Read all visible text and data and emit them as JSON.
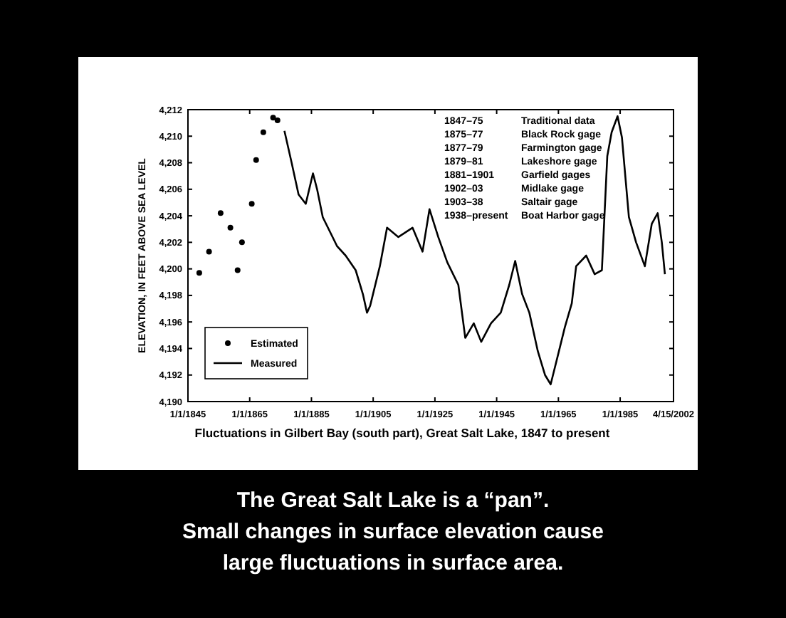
{
  "chart_data": {
    "type": "line",
    "title": "The Great Salt Lake is a “pan”.\nSmall changes in surface elevation cause\nlarge fluctuations in surface area.",
    "xlabel": "Fluctuations in Gilbert Bay (south part), Great Salt Lake, 1847 to present",
    "ylabel": "ELEVATION, IN FEET ABOVE SEA LEVEL",
    "annotations": [
      "1847–75\tTraditional data",
      "1875–77\tBlack Rock gage",
      "1877–79\tFarmington gage",
      "1879–81\tLakeshore gage",
      "1881–1901\tGarfield gages",
      "1902–03\tMidlake gage",
      "1903–38\tSaltair gage",
      "1938–present\tBoat Harbor gage"
    ],
    "xlim": [
      "1845-01-01",
      "2002-04-15"
    ],
    "xticks": [
      {
        "value": "1845-01-01",
        "label": "1/1/1845"
      },
      {
        "value": "1865-01-01",
        "label": "1/1/1865"
      },
      {
        "value": "1885-01-01",
        "label": "1/1/1885"
      },
      {
        "value": "1905-01-01",
        "label": "1/1/1905"
      },
      {
        "value": "1925-01-01",
        "label": "1/1/1925"
      },
      {
        "value": "1945-01-01",
        "label": "1/1/1945"
      },
      {
        "value": "1965-01-01",
        "label": "1/1/1965"
      },
      {
        "value": "1985-01-01",
        "label": "1/1/1985"
      },
      {
        "value": "2002-04-15",
        "label": "4/15/2002"
      }
    ],
    "ylim": [
      4190,
      4212
    ],
    "yticks": [
      {
        "value": 4190,
        "label": "4,190"
      },
      {
        "value": 4192,
        "label": "4,192"
      },
      {
        "value": 4194,
        "label": "4,194"
      },
      {
        "value": 4196,
        "label": "4,196"
      },
      {
        "value": 4198,
        "label": "4,198"
      },
      {
        "value": 4200,
        "label": "4,200"
      },
      {
        "value": 4202,
        "label": "4,202"
      },
      {
        "value": 4204,
        "label": "4,204"
      },
      {
        "value": 4206,
        "label": "4,206"
      },
      {
        "value": 4208,
        "label": "4,208"
      },
      {
        "value": 4210,
        "label": "4,210"
      },
      {
        "value": 4212,
        "label": "4,212"
      }
    ],
    "grid": false,
    "legend": "bottom left",
    "series": [
      {
        "name": "Estimated",
        "type": "scatter",
        "marker": "circle",
        "color": "#000000",
        "x": [
          "1848-09",
          "1851-11",
          "1855-08",
          "1858-10",
          "1861-02",
          "1862-07",
          "1865-09",
          "1867-02",
          "1869-06",
          "1872-08",
          "1874-01"
        ],
        "values": [
          4199.7,
          4201.3,
          4204.2,
          4203.1,
          4199.9,
          4202.0,
          4204.9,
          4208.2,
          4210.3,
          4211.4,
          4211.2
        ]
      },
      {
        "name": "Measured",
        "type": "line",
        "marker": "none",
        "line_style": "solid",
        "color": "#000000",
        "x": [
          "1876-04",
          "1878-08",
          "1880-11",
          "1883-03",
          "1885-07",
          "1886-11",
          "1888-09",
          "1891-01",
          "1893-05",
          "1896-02",
          "1899-05",
          "1901-09",
          "1903-01",
          "1904-01",
          "1907-03",
          "1909-07",
          "1913-03",
          "1917-10",
          "1921-01",
          "1923-04",
          "1926-02",
          "1929-01",
          "1932-08",
          "1934-11",
          "1937-08",
          "1940-01",
          "1943-03",
          "1946-05",
          "1949-02",
          "1951-01",
          "1953-04",
          "1955-08",
          "1958-05",
          "1960-09",
          "1962-07",
          "1964-10",
          "1967-02",
          "1969-05",
          "1970-10",
          "1974-01",
          "1976-10",
          "1979-02",
          "1980-11",
          "1982-04",
          "1984-03",
          "1985-08",
          "1987-11",
          "1990-03",
          "1993-01",
          "1995-04",
          "1997-03",
          "1998-07",
          "1999-07"
        ],
        "values": [
          4210.4,
          4208.0,
          4205.6,
          4204.9,
          4207.2,
          4206.0,
          4203.9,
          4202.8,
          4201.7,
          4201.0,
          4199.9,
          4198.1,
          4196.7,
          4197.2,
          4200.2,
          4203.1,
          4202.4,
          4203.1,
          4201.3,
          4204.5,
          4202.4,
          4200.5,
          4198.8,
          4194.8,
          4195.9,
          4194.5,
          4195.9,
          4196.7,
          4198.8,
          4200.6,
          4198.1,
          4196.7,
          4193.8,
          4192.0,
          4191.3,
          4193.4,
          4195.6,
          4197.4,
          4200.2,
          4201.0,
          4199.6,
          4199.9,
          4208.5,
          4210.3,
          4211.5,
          4209.9,
          4203.9,
          4202.0,
          4200.2,
          4203.4,
          4204.2,
          4202.0,
          4199.6
        ]
      }
    ]
  }
}
